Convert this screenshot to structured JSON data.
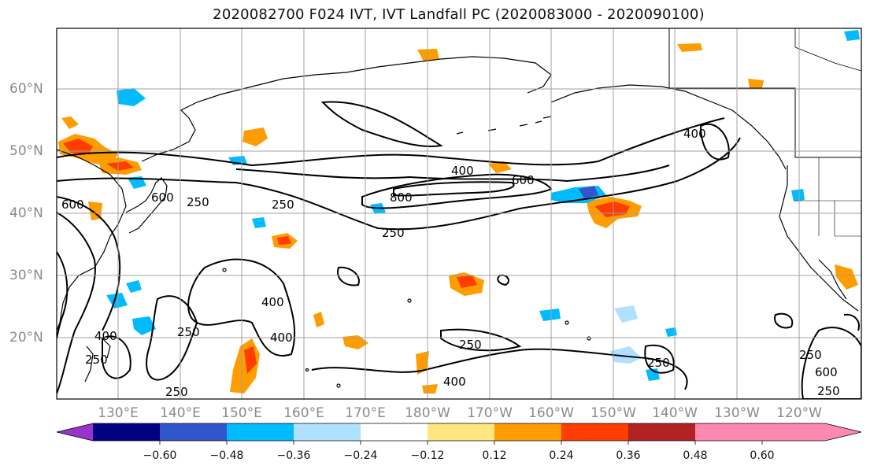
{
  "title": "2020082700 F024 IVT, IVT Landfall PC (2020083000 - 2020090100)",
  "lat_labels": [
    "60°N",
    "50°N",
    "40°N",
    "30°N",
    "20°N"
  ],
  "lon_labels": [
    "130°E",
    "140°E",
    "150°E",
    "160°E",
    "170°E",
    "180°W",
    "170°W",
    "160°W",
    "150°W",
    "140°W",
    "130°W",
    "120°W"
  ],
  "contour_labels": [
    "400",
    "600",
    "800",
    "250",
    "400",
    "400",
    "250",
    "250",
    "400",
    "250",
    "250",
    "400",
    "250",
    "600",
    "250",
    "600",
    "250",
    "400",
    "250",
    "600",
    "250"
  ],
  "colorbar": {
    "ticks": [
      "−0.60",
      "−0.48",
      "−0.36",
      "−0.24",
      "−0.12",
      "0.12",
      "0.24",
      "0.36",
      "0.48",
      "0.60"
    ],
    "colors": [
      "#9933cc",
      "#000080",
      "#3355cc",
      "#00bbff",
      "#b0e0ff",
      "#ffffff",
      "#ffe680",
      "#ff9d00",
      "#ff3d00",
      "#b22222",
      "#ff88b0"
    ]
  },
  "colors": {
    "land_outline": "#000000",
    "grid": "#a0a0a0",
    "contour": "#000000"
  }
}
